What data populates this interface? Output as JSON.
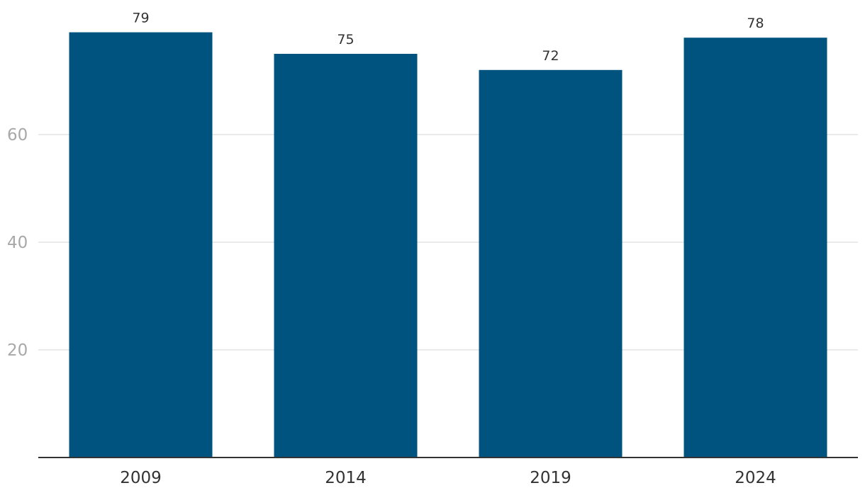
{
  "chart_data": {
    "type": "bar",
    "title": "",
    "xlabel": "",
    "ylabel": "",
    "categories": [
      "2009",
      "2014",
      "2019",
      "2024"
    ],
    "values": [
      79,
      75,
      72,
      78
    ],
    "data_labels": [
      "79",
      "75",
      "72",
      "78"
    ],
    "ylim": [
      0,
      80
    ],
    "yticks": [
      20,
      40,
      60
    ],
    "ytick_labels": [
      "20",
      "40",
      "60"
    ],
    "grid": true,
    "legend": "none",
    "colors": {
      "bar": "#00537e",
      "grid": "#e3e3e3",
      "axis": "#333333",
      "ytick_text": "#a8a8a8",
      "label_text": "#333333"
    }
  }
}
